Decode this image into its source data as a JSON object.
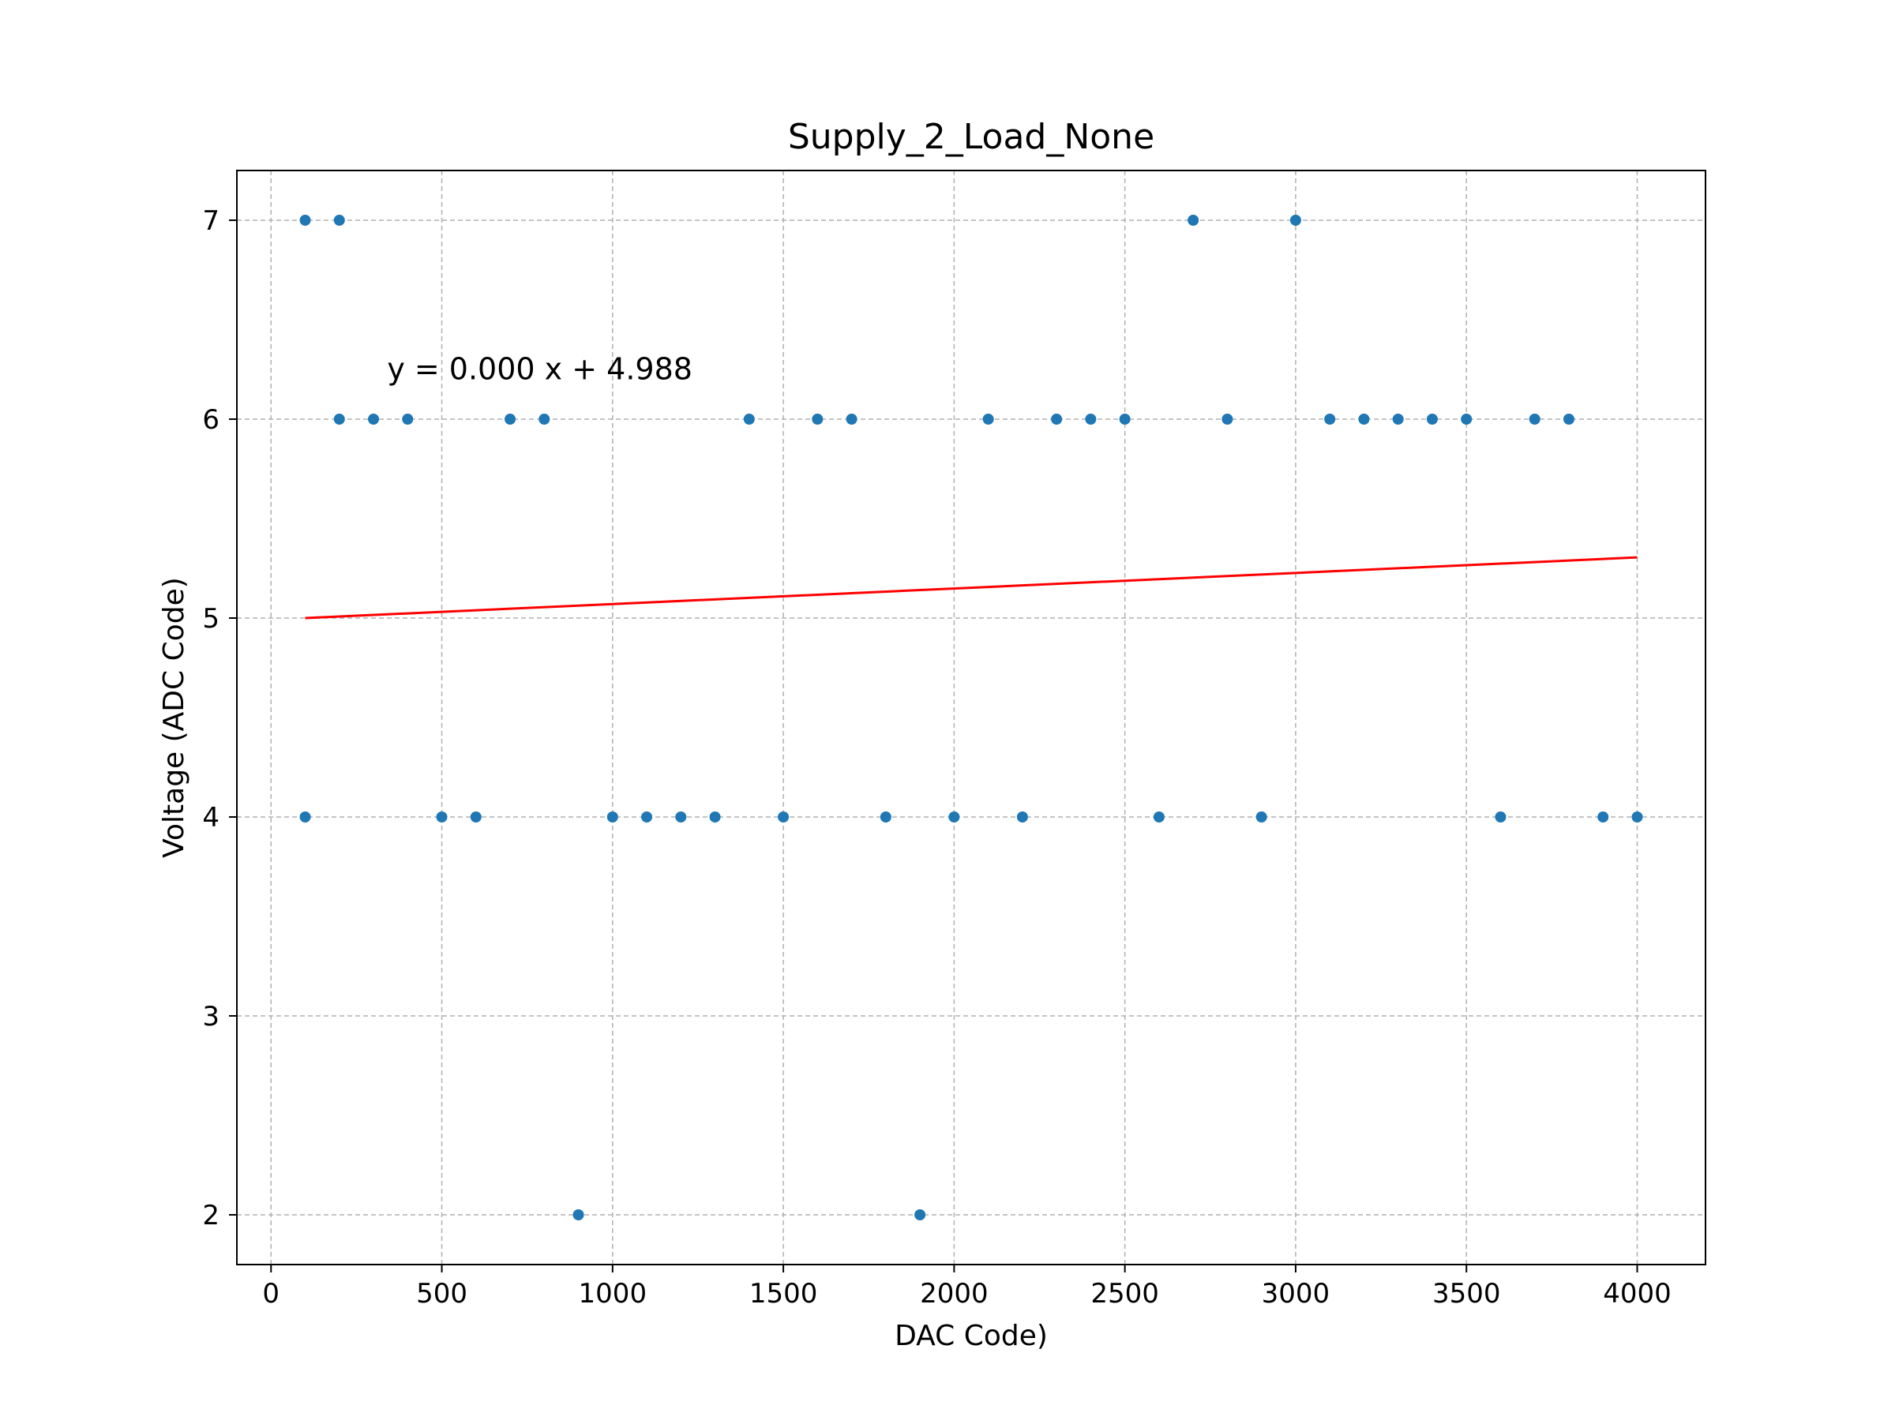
{
  "chart_data": {
    "type": "scatter",
    "title": "Supply_2_Load_None",
    "xlabel": "DAC Code)",
    "ylabel": "Voltage (ADC Code)",
    "xlim": [
      -100,
      4200
    ],
    "ylim": [
      1.75,
      7.25
    ],
    "xticks": [
      0,
      500,
      1000,
      1500,
      2000,
      2500,
      3000,
      3500,
      4000
    ],
    "yticks": [
      2,
      3,
      4,
      5,
      6,
      7
    ],
    "grid": true,
    "colors": {
      "points": "#1f77b4",
      "fit_line": "#ff0000",
      "grid": "#b0b0b0"
    },
    "series": [
      {
        "x": [
          100,
          100,
          200,
          200,
          300,
          400,
          500,
          600,
          700,
          800,
          900,
          1000,
          1100,
          1200,
          1300,
          1400,
          1500,
          1600,
          1700,
          1800,
          1900,
          2000,
          2100,
          2200,
          2300,
          2400,
          2500,
          2600,
          2700,
          2800,
          2900,
          3000,
          3100,
          3200,
          3300,
          3400,
          3500,
          3600,
          3700,
          3800,
          3900,
          4000
        ],
        "y": [
          7,
          4,
          7,
          6,
          6,
          6,
          4,
          4,
          6,
          6,
          2,
          4,
          4,
          4,
          4,
          6,
          4,
          6,
          6,
          4,
          2,
          4,
          6,
          4,
          6,
          6,
          6,
          4,
          7,
          6,
          4,
          7,
          6,
          6,
          6,
          6,
          6,
          4,
          6,
          6,
          4,
          4
        ]
      }
    ],
    "fit_line": {
      "x": [
        100,
        4000
      ],
      "y": [
        5.0,
        5.305
      ]
    },
    "annotation": {
      "text": "y = 0.000 x + 4.988",
      "x": 340,
      "y": 6.2
    }
  }
}
